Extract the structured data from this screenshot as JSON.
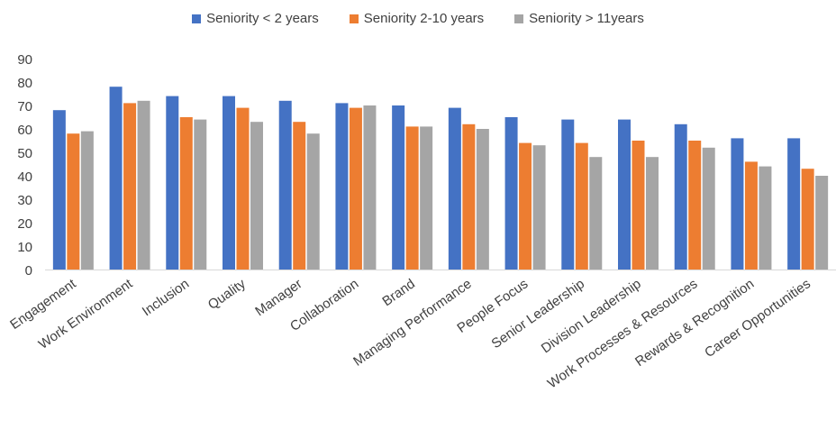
{
  "chart_data": {
    "type": "bar",
    "title": "",
    "xlabel": "",
    "ylabel": "",
    "ylim": [
      0,
      90
    ],
    "yticks": [
      0,
      10,
      20,
      30,
      40,
      50,
      60,
      70,
      80,
      90
    ],
    "grid": false,
    "legend_position": "top",
    "categories": [
      "Engagement",
      "Work Environment",
      "Inclusion",
      "Quality",
      "Manager",
      "Collaboration",
      "Brand",
      "Managing Performance",
      "People Focus",
      "Senior Leadership",
      "Division Leadership",
      "Work Processes & Resources",
      "Rewards & Recognition",
      "Career Opportunities"
    ],
    "series": [
      {
        "name": "Seniority < 2 years",
        "color": "#4472C4",
        "values": [
          68,
          78,
          74,
          74,
          72,
          71,
          70,
          69,
          65,
          64,
          64,
          62,
          56,
          56
        ]
      },
      {
        "name": "Seniority 2-10 years",
        "color": "#ED7D31",
        "values": [
          58,
          71,
          65,
          69,
          63,
          69,
          61,
          62,
          54,
          54,
          55,
          55,
          46,
          43
        ]
      },
      {
        "name": "Seniority > 11years",
        "color": "#A5A5A5",
        "values": [
          59,
          72,
          64,
          63,
          58,
          70,
          61,
          60,
          53,
          48,
          48,
          52,
          44,
          40
        ]
      }
    ]
  }
}
